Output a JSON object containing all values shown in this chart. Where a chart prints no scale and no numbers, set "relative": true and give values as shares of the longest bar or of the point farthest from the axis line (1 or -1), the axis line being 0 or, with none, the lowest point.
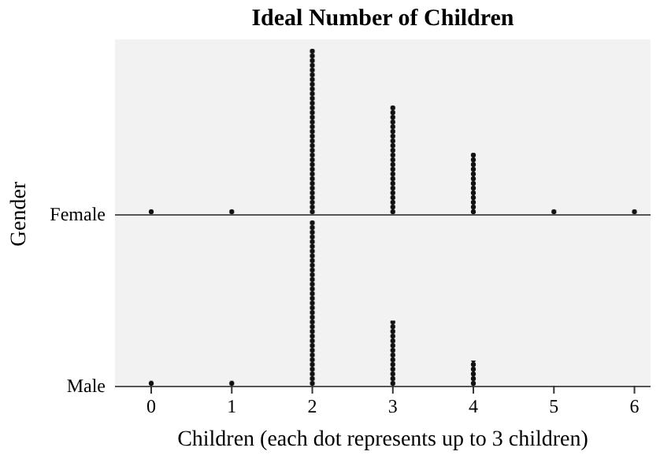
{
  "chart_data": [
    {
      "type": "bar",
      "title": "Ideal Number of Children",
      "ylabel": "Gender",
      "relative": true,
      "tick_labels": false,
      "x": [
        0,
        1,
        2,
        3,
        4,
        5,
        6
      ],
      "xlim": [
        -0.45,
        6.2
      ],
      "series": [
        {
          "name": "Female",
          "color": "#111111",
          "values": [
            0.029,
            0.029,
            1,
            0.657,
            0.371,
            0.029,
            0.029
          ]
        }
      ]
    },
    {
      "type": "bar",
      "xlabel": "Children (each dot represents up to 3 children)",
      "relative": true,
      "tick_labels": "x",
      "x": [
        0,
        1,
        2,
        3,
        4
      ],
      "xlim": [
        -0.45,
        6.2
      ],
      "xticks": [
        0,
        1,
        2,
        3,
        4,
        5,
        6
      ],
      "series": [
        {
          "name": "Male",
          "color": "#111111",
          "values": [
            0.03,
            0.03,
            1,
            0.394,
            0.152
          ]
        }
      ]
    }
  ]
}
